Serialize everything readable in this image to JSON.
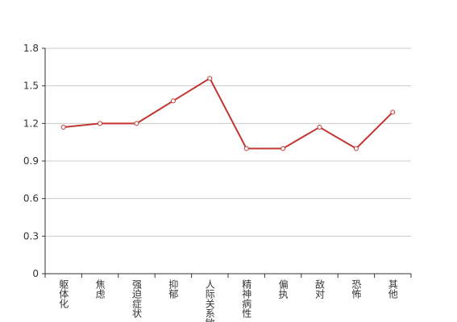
{
  "chart_data": {
    "type": "line",
    "categories": [
      "躯体化",
      "焦虑",
      "强迫症状",
      "抑郁",
      "人际关系敏感",
      "精神病性",
      "偏执",
      "敌对",
      "恐怖",
      "其他"
    ],
    "values": [
      1.17,
      1.2,
      1.2,
      1.38,
      1.56,
      1.0,
      1.0,
      1.17,
      1.0,
      1.29
    ],
    "color": "#c23531",
    "ylim": [
      0,
      1.8
    ],
    "yticks": [
      0,
      0.3,
      0.6,
      0.9,
      1.2,
      1.5,
      1.8
    ],
    "grid": true
  }
}
